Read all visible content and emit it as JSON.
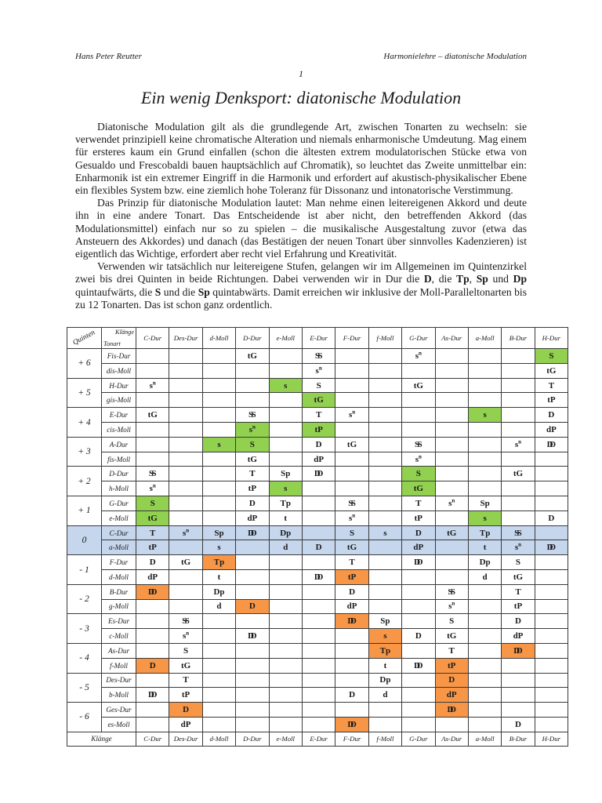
{
  "page": {
    "header_left": "Hans Peter Reutter",
    "header_right": "Harmonielehre – diatonische Modulation",
    "page_number": "1",
    "title": "Ein wenig Denksport: diatonische Modulation"
  },
  "paragraphs": [
    {
      "runs": [
        {
          "text": "Diatonische Modulation gilt als die grundlegende Art, zwischen Tonarten zu wechseln: sie verwendet prinzipiell keine chromatische Alteration und niemals enharmonische Umdeutung. Mag einem für ersteres kaum ein Grund einfallen (schon die ältesten extrem modulatorischen Stücke etwa von Gesualdo und Frescobaldi bauen hauptsächlich auf Chromatik), so leuchtet das Zweite unmittelbar ein: Enharmonik ist ein extremer Eingriff in die Harmonik und erfordert auf akustisch-physikalischer Ebene ein flexibles System bzw. eine ziemlich hohe Toleranz für Dissonanz und intonatorische Verstimmung."
        }
      ]
    },
    {
      "runs": [
        {
          "text": "Das Prinzip für diatonische Modulation lautet: Man nehme einen leitereigenen Akkord und deute ihn in eine andere Tonart. Das Entscheidende ist aber nicht, den betreffenden Akkord (das Modulationsmittel) einfach nur so zu spielen – die musikalische Ausgestaltung zuvor (etwa das Ansteuern des Akkordes) und danach (das Bestätigen der neuen Tonart über sinnvolles Kadenzieren) ist eigentlich das Wichtige, erfordert aber recht viel Erfahrung und Kreativität."
        }
      ]
    },
    {
      "runs": [
        {
          "text": "Verwenden wir tatsächlich nur leitereigene Stufen, gelangen wir im Allgemeinen im Quintenzirkel zwei bis drei Quinten in beide Richtungen. Dabei verwenden wir in Dur die "
        },
        {
          "text": "D",
          "bold": true
        },
        {
          "text": ", die "
        },
        {
          "text": "Tp",
          "bold": true
        },
        {
          "text": ", "
        },
        {
          "text": "Sp",
          "bold": true
        },
        {
          "text": " und "
        },
        {
          "text": "Dp",
          "bold": true
        },
        {
          "text": " quintaufwärts, die "
        },
        {
          "text": "S",
          "bold": true
        },
        {
          "text": " und die "
        },
        {
          "text": "Sp",
          "bold": true
        },
        {
          "text": " quintabwärts. Damit erreichen wir inklusive der Moll-Paralleltonarten bis zu 12 Tonarten. Das ist schon ganz ordentlich."
        }
      ]
    }
  ],
  "table": {
    "quinten_header": "Quinten",
    "corner_top": "Klänge",
    "corner_bottom": "Tonart",
    "footer_label": "Klänge",
    "colors": {
      "green": "#92d050",
      "orange": "#f79646",
      "blue": "#c6d6ec"
    },
    "columns": [
      "C-Dur",
      "Des-Dur",
      "d-Moll",
      "D-Dur",
      "e-Moll",
      "E-Dur",
      "F-Dur",
      "f-Moll",
      "G-Dur",
      "As-Dur",
      "a-Moll",
      "B-Dur",
      "H-Dur"
    ],
    "groups": [
      {
        "q": "+ 6",
        "rows": [
          {
            "label": "Fis-Dur",
            "cells": [
              "",
              "",
              "",
              "tG",
              "",
              "SS",
              "",
              "",
              "sn",
              "",
              "",
              "",
              "S|g"
            ]
          },
          {
            "label": "dis-Moll",
            "cells": [
              "",
              "",
              "",
              "",
              "",
              "sn",
              "",
              "",
              "",
              "",
              "",
              "",
              "tG"
            ]
          }
        ]
      },
      {
        "q": "+ 5",
        "rows": [
          {
            "label": "H-Dur",
            "cells": [
              "sn",
              "",
              "",
              "",
              "s|g",
              "S",
              "",
              "",
              "tG",
              "",
              "",
              "",
              "T"
            ]
          },
          {
            "label": "gis-Moll",
            "cells": [
              "",
              "",
              "",
              "",
              "",
              "tG|g",
              "",
              "",
              "",
              "",
              "",
              "",
              "tP"
            ]
          }
        ]
      },
      {
        "q": "+ 4",
        "rows": [
          {
            "label": "E-Dur",
            "cells": [
              "tG",
              "",
              "",
              "SS",
              "",
              "T",
              "sn",
              "",
              "",
              "",
              "s|g",
              "",
              "D"
            ]
          },
          {
            "label": "cis-Moll",
            "cells": [
              "",
              "",
              "",
              "sn|g",
              "",
              "tP|g",
              "",
              "",
              "",
              "",
              "",
              "",
              "dP"
            ]
          }
        ]
      },
      {
        "q": "+ 3",
        "rows": [
          {
            "label": "A-Dur",
            "cells": [
              "",
              "",
              "s|g",
              "S|g",
              "",
              "D",
              "tG",
              "",
              "SS",
              "",
              "",
              "sn",
              "DD"
            ]
          },
          {
            "label": "fis-Moll",
            "cells": [
              "",
              "",
              "",
              "tG",
              "",
              "dP",
              "",
              "",
              "sn",
              "",
              "",
              "",
              ""
            ]
          }
        ]
      },
      {
        "q": "+ 2",
        "rows": [
          {
            "label": "D-Dur",
            "cells": [
              "SS",
              "",
              "",
              "T",
              "Sp",
              "DD",
              "",
              "",
              "S|g",
              "",
              "",
              "tG",
              ""
            ]
          },
          {
            "label": "h-Moll",
            "cells": [
              "sn",
              "",
              "",
              "tP",
              "s|g",
              "",
              "",
              "",
              "tG|g",
              "",
              "",
              "",
              ""
            ]
          }
        ]
      },
      {
        "q": "+ 1",
        "rows": [
          {
            "label": "G-Dur",
            "cells": [
              "S|g",
              "",
              "",
              "D",
              "Tp",
              "",
              "SS",
              "",
              "T",
              "sn",
              "Sp",
              "",
              ""
            ]
          },
          {
            "label": "e-Moll",
            "cells": [
              "tG|g",
              "",
              "",
              "dP",
              "t",
              "",
              "sn",
              "",
              "tP",
              "",
              "s|g",
              "",
              "D"
            ]
          }
        ]
      },
      {
        "q": "0",
        "blue": true,
        "rows": [
          {
            "label": "C-Dur",
            "cells": [
              "T",
              "sn",
              "Sp",
              "DD",
              "Dp",
              "",
              "S",
              "s",
              "D",
              "tG",
              "Tp",
              "SS",
              ""
            ]
          },
          {
            "label": "a-Moll",
            "cells": [
              "tP",
              "",
              "s",
              "",
              "d",
              "D",
              "tG",
              "",
              "dP",
              "",
              "t",
              "sn",
              "DD"
            ]
          }
        ]
      },
      {
        "q": "- 1",
        "rows": [
          {
            "label": "F-Dur",
            "cells": [
              "D",
              "tG",
              "Tp|o",
              "",
              "",
              "",
              "T",
              "",
              "DD",
              "",
              "Dp",
              "S",
              ""
            ]
          },
          {
            "label": "d-Moll",
            "cells": [
              "dP",
              "",
              "t",
              "",
              "",
              "DD",
              "tP|o",
              "",
              "",
              "",
              "d",
              "tG",
              ""
            ]
          }
        ]
      },
      {
        "q": "- 2",
        "rows": [
          {
            "label": "B-Dur",
            "cells": [
              "DD|o",
              "",
              "Dp",
              "",
              "",
              "",
              "D",
              "",
              "",
              "SS",
              "",
              "T",
              ""
            ]
          },
          {
            "label": "g-Moll",
            "cells": [
              "",
              "",
              "d",
              "D|o",
              "",
              "",
              "dP",
              "",
              "",
              "sn",
              "",
              "tP",
              ""
            ]
          }
        ]
      },
      {
        "q": "- 3",
        "rows": [
          {
            "label": "Es-Dur",
            "cells": [
              "",
              "SS",
              "",
              "",
              "",
              "",
              "DD|o",
              "Sp",
              "",
              "S",
              "",
              "D",
              ""
            ]
          },
          {
            "label": "c-Moll",
            "cells": [
              "",
              "sn",
              "",
              "DD",
              "",
              "",
              "",
              "s|o",
              "D",
              "tG",
              "",
              "dP",
              ""
            ]
          }
        ]
      },
      {
        "q": "- 4",
        "rows": [
          {
            "label": "As-Dur",
            "cells": [
              "",
              "S",
              "",
              "",
              "",
              "",
              "",
              "Tp|o",
              "",
              "T",
              "",
              "DD|o",
              ""
            ]
          },
          {
            "label": "f-Moll",
            "cells": [
              "D|o",
              "tG",
              "",
              "",
              "",
              "",
              "",
              "t",
              "DD",
              "tP|o",
              "",
              "",
              ""
            ]
          }
        ]
      },
      {
        "q": "- 5",
        "rows": [
          {
            "label": "Des-Dur",
            "cells": [
              "",
              "T",
              "",
              "",
              "",
              "",
              "",
              "Dp",
              "",
              "D|o",
              "",
              "",
              ""
            ]
          },
          {
            "label": "b-Moll",
            "cells": [
              "DD",
              "tP",
              "",
              "",
              "",
              "",
              "D",
              "d",
              "",
              "dP|o",
              "",
              "",
              ""
            ]
          }
        ]
      },
      {
        "q": "- 6",
        "rows": [
          {
            "label": "Ges-Dur",
            "cells": [
              "",
              "D|o",
              "",
              "",
              "",
              "",
              "",
              "",
              "",
              "DD|o",
              "",
              "",
              ""
            ]
          },
          {
            "label": "es-Moll",
            "cells": [
              "",
              "dP",
              "",
              "",
              "",
              "",
              "DD|o",
              "",
              "",
              "",
              "",
              "D",
              ""
            ]
          }
        ]
      }
    ]
  }
}
